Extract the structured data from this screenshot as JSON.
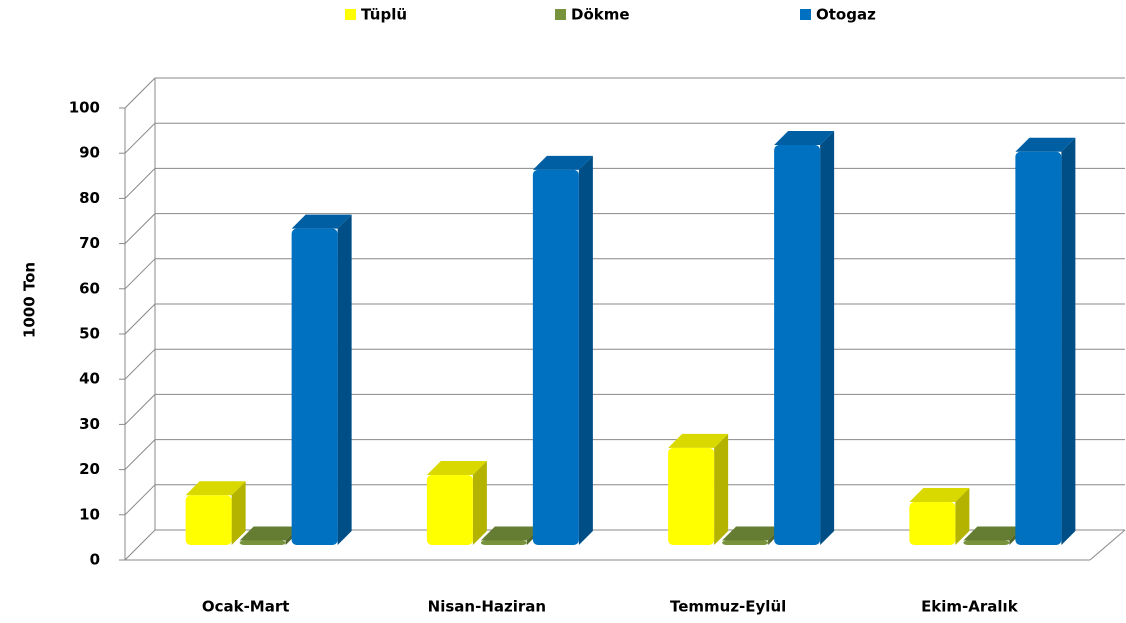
{
  "chart_data": {
    "type": "bar3d",
    "categories": [
      "Ocak-Mart",
      "Nisan-Haziran",
      "Temmuz-Eylül",
      "Ekim-Aralık"
    ],
    "series": [
      {
        "name": "Tüplü",
        "color": "#ffff00",
        "values": [
          11,
          15.5,
          21.5,
          9.5
        ]
      },
      {
        "name": "Dökme",
        "color": "#77933c",
        "values": [
          1,
          1,
          1,
          1
        ]
      },
      {
        "name": "Otogaz",
        "color": "#0070c0",
        "values": [
          70,
          83,
          88.5,
          87
        ]
      }
    ],
    "y_label": "1000 Ton",
    "ylim": [
      0,
      100
    ],
    "yticks": [
      0,
      10,
      20,
      30,
      40,
      50,
      60,
      70,
      80,
      90,
      100
    ],
    "grid": true,
    "legend": "top"
  }
}
